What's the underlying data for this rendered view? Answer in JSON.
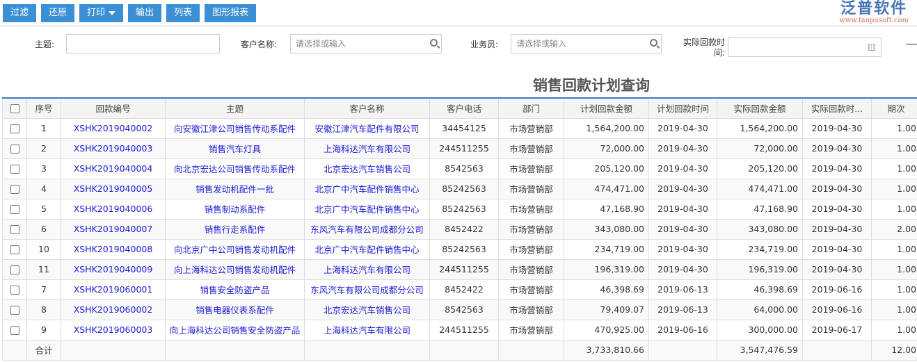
{
  "toolbar": {
    "filter": "过滤",
    "reset": "还原",
    "print": "打印",
    "export": "输出",
    "list": "列表",
    "chart_report": "图形报表"
  },
  "filters": {
    "subject_label": "主题:",
    "subject_value": "",
    "customer_label": "客户名称:",
    "customer_placeholder": "请选择或输入",
    "salesman_label": "业务员:",
    "salesman_placeholder": "请选择或输入",
    "actual_time_label": "实际回款时间:"
  },
  "page_title": "销售回款计划查询",
  "table": {
    "headers": [
      "序号",
      "回款编号",
      "主题",
      "客户名称",
      "客户电话",
      "部门",
      "计划回款金额",
      "计划回款时间",
      "实际回款金额",
      "实际回款时...",
      "期次"
    ],
    "rows": [
      [
        "1",
        "XSHK2019040002",
        "向安徽江津公司销售传动系配件",
        "安徽江津汽车配件有限公司",
        "34454125",
        "市场营销部",
        "1,564,200.00",
        "2019-04-30",
        "1,564,200.00",
        "2019-04-30",
        "1.00"
      ],
      [
        "2",
        "XSHK2019040003",
        "销售汽车灯具",
        "上海科达汽车有限公司",
        "244511255",
        "市场营销部",
        "72,000.00",
        "2019-04-30",
        "72,000.00",
        "2019-04-30",
        "1.00"
      ],
      [
        "3",
        "XSHK2019040004",
        "向北京宏达公司销售传动系配件",
        "北京宏达汽车销售公司",
        "8542563",
        "市场营销部",
        "205,120.00",
        "2019-04-30",
        "205,120.00",
        "2019-04-30",
        "1.00"
      ],
      [
        "4",
        "XSHK2019040005",
        "销售发动机配件一批",
        "北京广中汽车配件销售中心",
        "85242563",
        "市场营销部",
        "474,471.00",
        "2019-04-30",
        "474,471.00",
        "2019-04-30",
        "1.00"
      ],
      [
        "5",
        "XSHK2019040006",
        "销售制动系配件",
        "北京广中汽车配件销售中心",
        "85242563",
        "市场营销部",
        "47,168.90",
        "2019-04-30",
        "47,168.90",
        "2019-04-30",
        "1.00"
      ],
      [
        "6",
        "XSHK2019040007",
        "销售行走系配件",
        "东风汽车有限公司成都分公司",
        "8452422",
        "市场营销部",
        "343,080.00",
        "2019-04-30",
        "343,080.00",
        "2019-04-30",
        "2.00"
      ],
      [
        "10",
        "XSHK2019040008",
        "向北京广中公司销售发动机配件",
        "北京广中汽车配件销售中心",
        "85242563",
        "市场营销部",
        "234,719.00",
        "2019-04-30",
        "234,719.00",
        "2019-04-30",
        "1.00"
      ],
      [
        "11",
        "XSHK2019040009",
        "向上海科达公司销售发动机配件",
        "上海科达汽车有限公司",
        "244511255",
        "市场营销部",
        "196,319.00",
        "2019-04-30",
        "196,319.00",
        "2019-04-30",
        "1.00"
      ],
      [
        "7",
        "XSHK2019060001",
        "销售安全防盗产品",
        "东风汽车有限公司成都分公司",
        "8452422",
        "市场营销部",
        "46,398.69",
        "2019-06-13",
        "46,398.69",
        "2019-06-16",
        "1.00"
      ],
      [
        "8",
        "XSHK2019060002",
        "销售电器仪表系配件",
        "北京宏达汽车销售公司",
        "8542563",
        "市场营销部",
        "79,409.07",
        "2019-06-13",
        "64,000.00",
        "2019-06-16",
        "1.00"
      ],
      [
        "9",
        "XSHK2019060003",
        "向上海科达公司销售安全防盗产品",
        "上海科达汽车有限公司",
        "244511255",
        "市场营销部",
        "470,925.00",
        "2019-06-16",
        "300,000.00",
        "2019-06-17",
        "1.00"
      ]
    ],
    "total": {
      "label": "合计",
      "planned": "3,733,810.66",
      "actual": "3,547,476.59",
      "periods": "12.00"
    }
  },
  "watermark": {
    "text": "泛普软件",
    "url": "www.fanpusoft.com"
  }
}
